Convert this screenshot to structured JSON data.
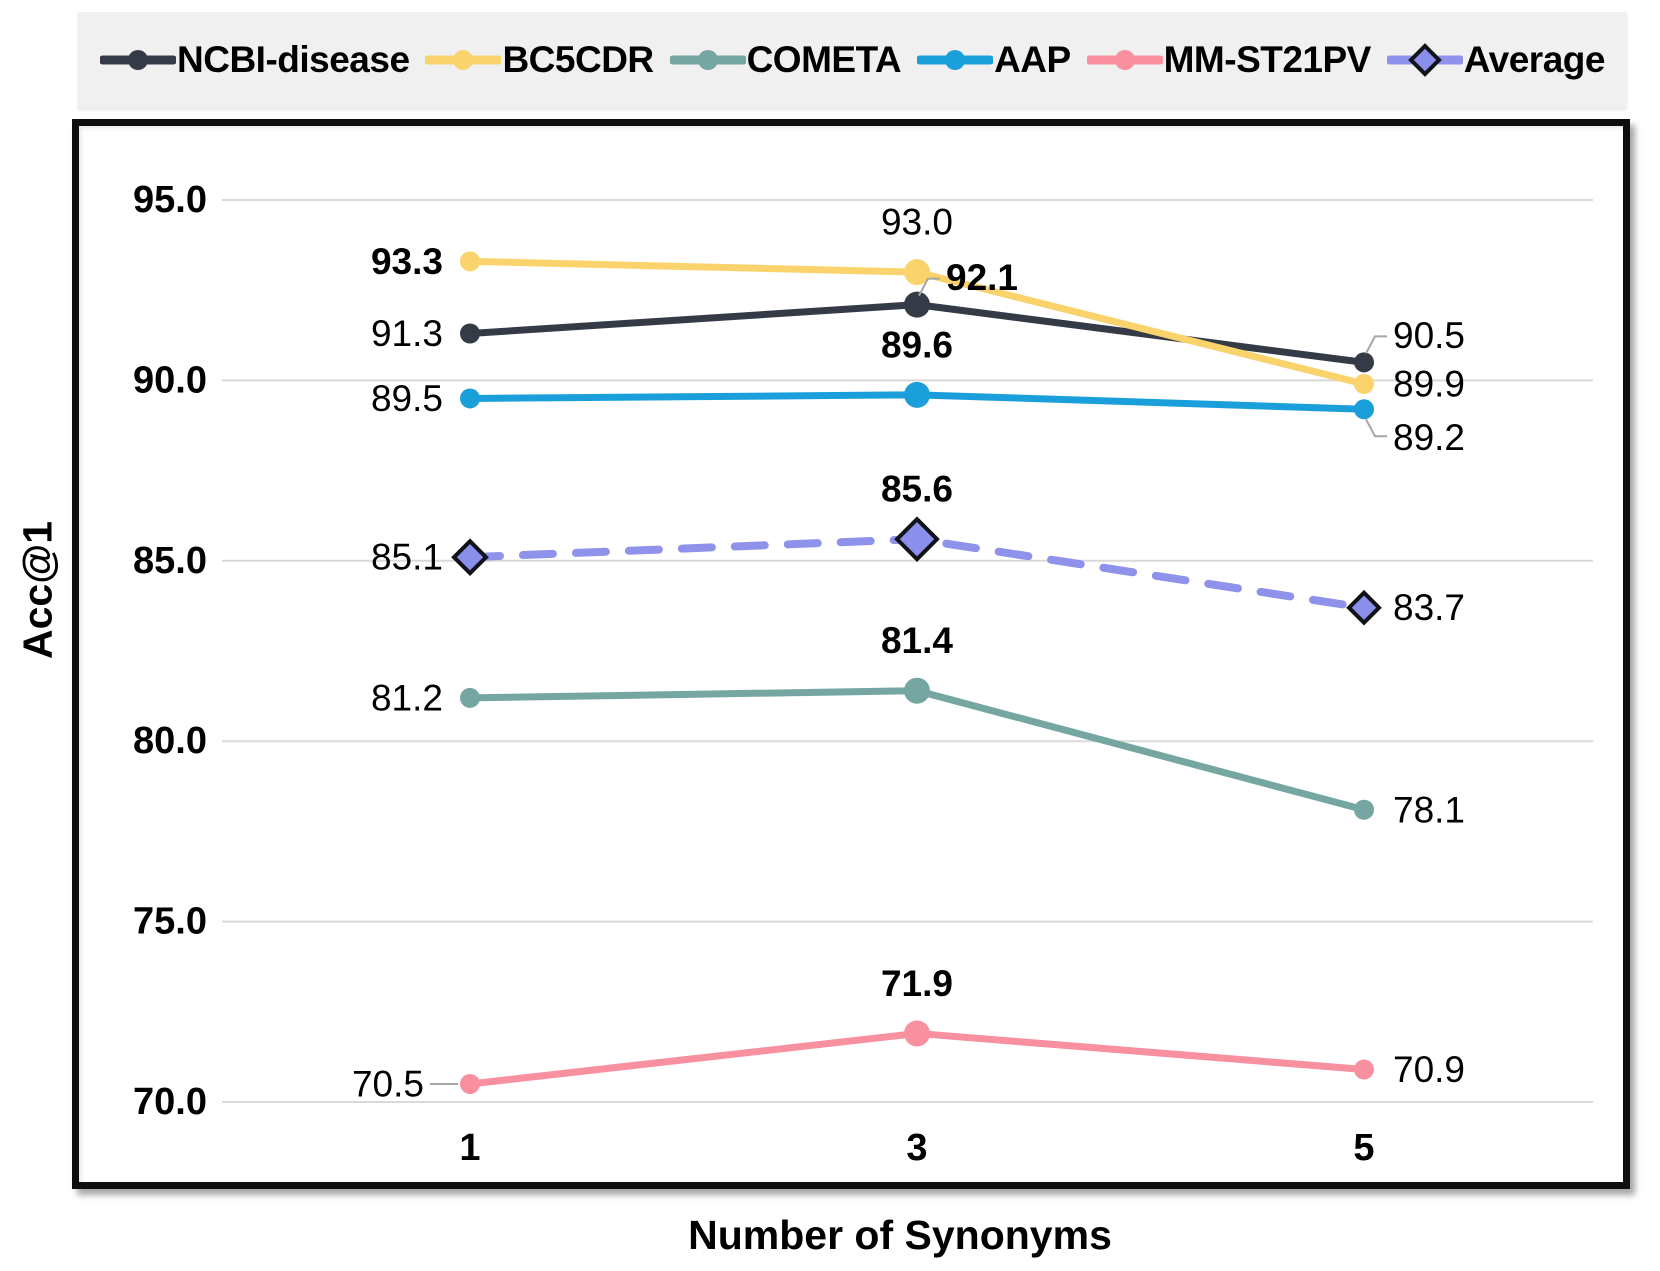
{
  "chart_data": {
    "type": "line",
    "title": "",
    "xlabel": "Number of Synonyms",
    "ylabel": "Acc@1",
    "x": [
      1,
      3,
      5
    ],
    "xticks": [
      "1",
      "3",
      "5"
    ],
    "yticks": [
      "95.0",
      "90.0",
      "85.0",
      "80.0",
      "75.0",
      "70.0"
    ],
    "ylim": [
      70,
      95
    ],
    "grid": true,
    "legend_position": "top",
    "series": [
      {
        "name": "NCBI-disease",
        "color": "#343b47",
        "marker": "circle",
        "dash": false,
        "values": [
          91.3,
          92.1,
          90.5
        ],
        "labels": [
          {
            "text": "91.3",
            "bold": false,
            "pos": "left"
          },
          {
            "text": "92.1",
            "bold": true,
            "pos": "callout-up"
          },
          {
            "text": "90.5",
            "bold": false,
            "pos": "callout-up"
          }
        ]
      },
      {
        "name": "BC5CDR",
        "color": "#fbd36d",
        "marker": "circle",
        "dash": false,
        "values": [
          93.3,
          93.0,
          89.9
        ],
        "labels": [
          {
            "text": "93.3",
            "bold": true,
            "pos": "left"
          },
          {
            "text": "93.0",
            "bold": false,
            "pos": "above"
          },
          {
            "text": "89.9",
            "bold": false,
            "pos": "right"
          }
        ]
      },
      {
        "name": "COMETA",
        "color": "#75a6a2",
        "marker": "circle",
        "dash": false,
        "values": [
          81.2,
          81.4,
          78.1
        ],
        "labels": [
          {
            "text": "81.2",
            "bold": false,
            "pos": "left"
          },
          {
            "text": "81.4",
            "bold": true,
            "pos": "above"
          },
          {
            "text": "78.1",
            "bold": false,
            "pos": "right"
          }
        ]
      },
      {
        "name": "AAP",
        "color": "#1b9fda",
        "marker": "circle",
        "dash": false,
        "values": [
          89.5,
          89.6,
          89.2
        ],
        "labels": [
          {
            "text": "89.5",
            "bold": false,
            "pos": "left"
          },
          {
            "text": "89.6",
            "bold": true,
            "pos": "above"
          },
          {
            "text": "89.2",
            "bold": false,
            "pos": "callout-down"
          }
        ]
      },
      {
        "name": "MM-ST21PV",
        "color": "#f9909f",
        "marker": "circle",
        "dash": false,
        "values": [
          70.5,
          71.9,
          70.9
        ],
        "labels": [
          {
            "text": "70.5",
            "bold": false,
            "pos": "left-leader"
          },
          {
            "text": "71.9",
            "bold": true,
            "pos": "above"
          },
          {
            "text": "70.9",
            "bold": false,
            "pos": "right"
          }
        ]
      },
      {
        "name": "Average",
        "color": "#8f92ea",
        "marker": "diamond",
        "marker_fill": "#8b8fec",
        "marker_stroke": "#121219",
        "dash": true,
        "values": [
          85.1,
          85.6,
          83.7
        ],
        "labels": [
          {
            "text": "85.1",
            "bold": false,
            "pos": "left"
          },
          {
            "text": "85.6",
            "bold": true,
            "pos": "above"
          },
          {
            "text": "83.7",
            "bold": false,
            "pos": "right"
          }
        ]
      }
    ],
    "colors": {
      "grid": "#d9d9d9",
      "leader": "#a6a6a6",
      "legend_bg": "#f0f0f1",
      "frame_border": "#0e0e0e",
      "label_text": "#000000"
    }
  }
}
